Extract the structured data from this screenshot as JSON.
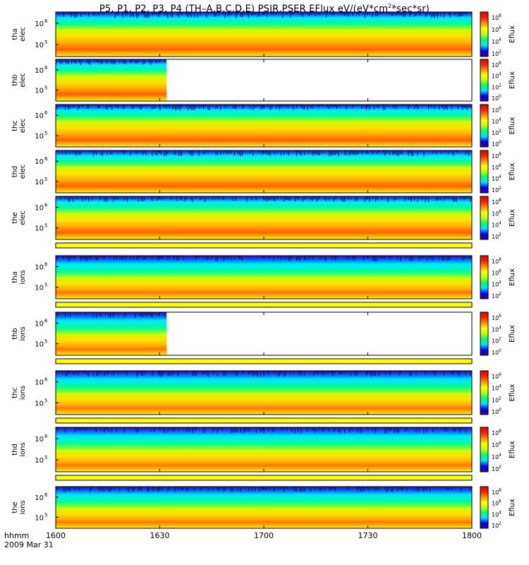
{
  "header": {
    "title_pre": "P5, P1, P2, P3, P4 (TH–A,B,C,D,E) PSIR,PSER EFlux eV/(eV*cm",
    "title_sup": "2",
    "title_post": "*sec*sr)"
  },
  "footer": {
    "time_unit": "hhmm",
    "date": "2009 Mar 31"
  },
  "chart_data": {
    "type": "heatmap",
    "x_ticks": [
      "1600",
      "1630",
      "1700",
      "1730",
      "1800"
    ],
    "xlim": [
      "1600",
      "1800"
    ],
    "colorbar_label": "Eflux",
    "colors": {
      "scale": [
        "#3c007c",
        "#0000ff",
        "#00e0ff",
        "#00ff70",
        "#c0ff00",
        "#ffff00",
        "#ff9000",
        "#ff2000",
        "#e00000"
      ],
      "separator": "#ffff00"
    },
    "panels": [
      {
        "id": "tha-elec",
        "label1": "tha",
        "label2": "elec",
        "y_ticks": [
          "10",
          "10"
        ],
        "y_exps": [
          "6",
          "5"
        ],
        "cbar_ticks": [
          "10",
          "10",
          "10",
          "10"
        ],
        "cbar_exps": [
          "8",
          "6",
          "4",
          "2"
        ],
        "data_end": "1800"
      },
      {
        "id": "thb-elec",
        "label1": "thb",
        "label2": "elec",
        "y_ticks": [
          "10",
          "10"
        ],
        "y_exps": [
          "6",
          "5"
        ],
        "cbar_ticks": [
          "10",
          "10",
          "10",
          "10"
        ],
        "cbar_exps": [
          "6",
          "4",
          "2",
          "0"
        ],
        "data_end": "1632"
      },
      {
        "id": "thc-elec",
        "label1": "thc",
        "label2": "elec",
        "y_ticks": [
          "10",
          "10"
        ],
        "y_exps": [
          "6",
          "5"
        ],
        "cbar_ticks": [
          "10",
          "10",
          "10",
          "10"
        ],
        "cbar_exps": [
          "6",
          "4",
          "2",
          "0"
        ],
        "data_end": "1800"
      },
      {
        "id": "thd-elec",
        "label1": "thd",
        "label2": "elec",
        "y_ticks": [
          "10",
          "10"
        ],
        "y_exps": [
          "6",
          "5"
        ],
        "cbar_ticks": [
          "10",
          "10",
          "10",
          "10"
        ],
        "cbar_exps": [
          "8",
          "6",
          "4",
          "2"
        ],
        "data_end": "1800"
      },
      {
        "id": "the-elec",
        "label1": "the",
        "label2": "elec",
        "y_ticks": [
          "10",
          "10"
        ],
        "y_exps": [
          "6",
          "5"
        ],
        "cbar_ticks": [
          "10",
          "10",
          "10",
          "10"
        ],
        "cbar_exps": [
          "8",
          "6",
          "4",
          "2"
        ],
        "data_end": "1800"
      },
      {
        "id": "tha-ions",
        "label1": "tha",
        "label2": "ions",
        "y_ticks": [
          "10",
          "10"
        ],
        "y_exps": [
          "6",
          "5"
        ],
        "cbar_ticks": [
          "10",
          "10",
          "10",
          "10"
        ],
        "cbar_exps": [
          "8",
          "6",
          "4",
          "2"
        ],
        "data_end": "1800"
      },
      {
        "id": "thb-ions",
        "label1": "thb",
        "label2": "ions",
        "y_ticks": [
          "10",
          "10"
        ],
        "y_exps": [
          "6",
          "5"
        ],
        "cbar_ticks": [
          "10",
          "10",
          "10",
          "10"
        ],
        "cbar_exps": [
          "6",
          "4",
          "2",
          "0"
        ],
        "data_end": "1632"
      },
      {
        "id": "thc-ions",
        "label1": "thc",
        "label2": "ions",
        "y_ticks": [
          "10",
          "10"
        ],
        "y_exps": [
          "6",
          "5"
        ],
        "cbar_ticks": [
          "10",
          "10",
          "10",
          "10"
        ],
        "cbar_exps": [
          "6",
          "4",
          "2",
          "0"
        ],
        "data_end": "1800"
      },
      {
        "id": "thd-ions",
        "label1": "thd",
        "label2": "ions",
        "y_ticks": [
          "10",
          "10"
        ],
        "y_exps": [
          "6",
          "5"
        ],
        "cbar_ticks": [
          "10",
          "10",
          "10",
          "10"
        ],
        "cbar_exps": [
          "8",
          "6",
          "4",
          "2"
        ],
        "data_end": "1800"
      },
      {
        "id": "the-ions",
        "label1": "the",
        "label2": "ions",
        "y_ticks": [
          "10",
          "10"
        ],
        "y_exps": [
          "6",
          "5"
        ],
        "cbar_ticks": [
          "10",
          "10",
          "10",
          "10"
        ],
        "cbar_exps": [
          "8",
          "6",
          "4",
          "2"
        ],
        "data_end": "1800"
      }
    ]
  }
}
